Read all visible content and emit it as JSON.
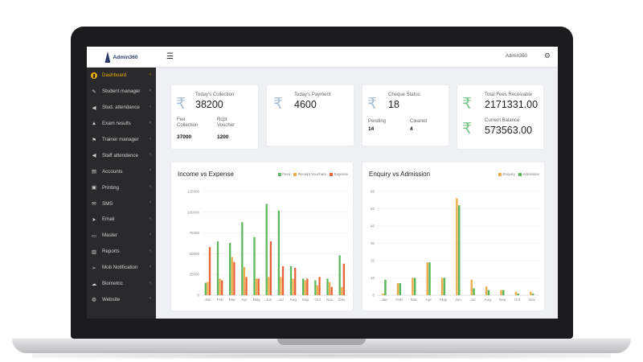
{
  "app": {
    "brand": "Admin360",
    "user": "Admin360"
  },
  "sidebar": {
    "items": [
      {
        "label": "Dashboard",
        "icon": "dashboard-icon",
        "active": true
      },
      {
        "label": "Student manager",
        "icon": "edit-icon"
      },
      {
        "label": "Stud. attendance",
        "icon": "megaphone-icon"
      },
      {
        "label": "Exam results",
        "icon": "graduation-icon"
      },
      {
        "label": "Trainer manager",
        "icon": "flag-icon"
      },
      {
        "label": "Staff attendence",
        "icon": "megaphone-icon"
      },
      {
        "label": "Accounts",
        "icon": "files-icon"
      },
      {
        "label": "Printing",
        "icon": "printer-icon"
      },
      {
        "label": "SMS",
        "icon": "envelope-icon"
      },
      {
        "label": "Email",
        "icon": "paper-plane-icon"
      },
      {
        "label": "Master",
        "icon": "folder-icon"
      },
      {
        "label": "Reports",
        "icon": "book-icon"
      },
      {
        "label": "Mob Notification",
        "icon": "send-icon"
      },
      {
        "label": "Biometric",
        "icon": "cloud-icon"
      },
      {
        "label": "Website",
        "icon": "globe-icon"
      }
    ]
  },
  "cards": {
    "collection": {
      "label": "Today's Collection",
      "value": "38200",
      "fee_label": "Fee Collection",
      "fee_value": "37000",
      "rcpt_label": "Rcpt Voucher",
      "rcpt_value": "1200"
    },
    "payment": {
      "label": "Today's Payment",
      "value": "4600"
    },
    "cheque": {
      "label": "Cheque Status",
      "value": "18",
      "pending_label": "Pending",
      "pending_value": "14",
      "cleared_label": "Cleared",
      "cleared_value": "4"
    },
    "receivable": {
      "label": "Total Fees Receivable",
      "value": "2171331.00",
      "balance_label": "Current Balance",
      "balance_value": "573563.00"
    }
  },
  "colors": {
    "green": "#5cb85c",
    "orange": "#f0ad4e",
    "red": "#e8623a"
  },
  "chart_data": [
    {
      "type": "bar",
      "title": "Income vs Expense",
      "categories": [
        "Jan",
        "Feb",
        "Mar",
        "Apr",
        "May",
        "Jun",
        "Jul",
        "Aug",
        "Sep",
        "Oct",
        "Nov",
        "Dec"
      ],
      "ylim": [
        0,
        125000
      ],
      "yticks": [
        "0",
        "25000",
        "50000",
        "75000",
        "100000",
        "125000"
      ],
      "series": [
        {
          "name": "Fees",
          "color": "#5cb85c",
          "values": [
            15000,
            65000,
            63000,
            88000,
            70000,
            110000,
            102000,
            35000,
            20000,
            18000,
            20000,
            48000
          ]
        },
        {
          "name": "Receipt Vouchers",
          "color": "#f0ad4e",
          "values": [
            16000,
            20000,
            46000,
            34000,
            20000,
            22000,
            22000,
            20000,
            18000,
            12000,
            16000,
            10000
          ]
        },
        {
          "name": "Expense",
          "color": "#e8623a",
          "values": [
            58000,
            18000,
            40000,
            22000,
            20000,
            65000,
            35000,
            33000,
            20000,
            22000,
            10000,
            38000
          ]
        }
      ]
    },
    {
      "type": "bar",
      "title": "Enquiry vs Admission",
      "categories": [
        "Jan",
        "Feb",
        "Mar",
        "Apr",
        "May",
        "Jun",
        "Jul",
        "Aug",
        "Sep",
        "Oct",
        "Nov"
      ],
      "ylim": [
        0,
        60
      ],
      "yticks": [
        "0",
        "10",
        "20",
        "30",
        "40",
        "50",
        "60"
      ],
      "series": [
        {
          "name": "Enquiry",
          "color": "#f0ad4e",
          "values": [
            1,
            7,
            10,
            19,
            10,
            56,
            9,
            5,
            3,
            2,
            2
          ]
        },
        {
          "name": "Admission",
          "color": "#5cb85c",
          "values": [
            9,
            7,
            10,
            19,
            10,
            52,
            4,
            3,
            3,
            1,
            1
          ]
        }
      ]
    }
  ]
}
